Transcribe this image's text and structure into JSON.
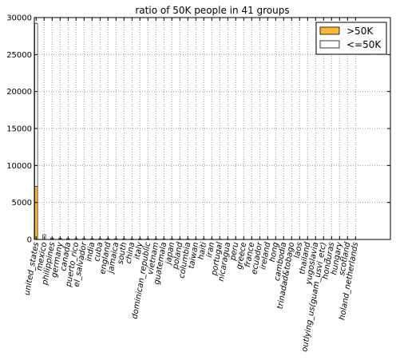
{
  "chart_data": {
    "type": "bar",
    "title": "ratio of 50K people in 41 groups",
    "xlabel": "",
    "ylabel": "",
    "ylim": [
      0,
      30000
    ],
    "yticks": [
      0,
      5000,
      10000,
      15000,
      20000,
      25000,
      30000
    ],
    "grid": true,
    "stacked": true,
    "legend_position": "top-right",
    "colors": {
      ">50K": "#ffb833",
      "<=50K": "#ffffff"
    },
    "categories": [
      "united_states",
      "mexico",
      "philippines",
      "germany",
      "canada",
      "puerto_rico",
      "el_salvador",
      "india",
      "cuba",
      "england",
      "jamaica",
      "south",
      "china",
      "italy",
      "dominican_republic",
      "vietnam",
      "guatemala",
      "japan",
      "poland",
      "columbia",
      "taiwan",
      "haiti",
      "iran",
      "portugal",
      "nicaragua",
      "peru",
      "greece",
      "france",
      "ecuador",
      "ireland",
      "hong",
      "cambodia",
      "trinadad&tobago",
      "laos",
      "thailand",
      "yugoslavia",
      "outlying_us(guam_usvi_etc)",
      "honduras",
      "hungary",
      "scotland",
      "holand_netherlands"
    ],
    "series": [
      {
        "name": ">50K",
        "values": [
          7171,
          33,
          61,
          44,
          39,
          12,
          9,
          40,
          25,
          30,
          10,
          16,
          20,
          25,
          2,
          5,
          3,
          24,
          12,
          4,
          20,
          4,
          18,
          4,
          2,
          2,
          8,
          12,
          4,
          5,
          6,
          7,
          2,
          2,
          3,
          6,
          0,
          1,
          3,
          3,
          0
        ]
      },
      {
        "name": "<=50K",
        "values": [
          21999,
          610,
          137,
          93,
          82,
          102,
          97,
          60,
          70,
          60,
          71,
          64,
          55,
          48,
          68,
          62,
          61,
          38,
          48,
          56,
          31,
          40,
          25,
          33,
          32,
          29,
          21,
          17,
          24,
          19,
          14,
          12,
          17,
          16,
          15,
          10,
          14,
          12,
          10,
          9,
          1
        ]
      }
    ]
  }
}
